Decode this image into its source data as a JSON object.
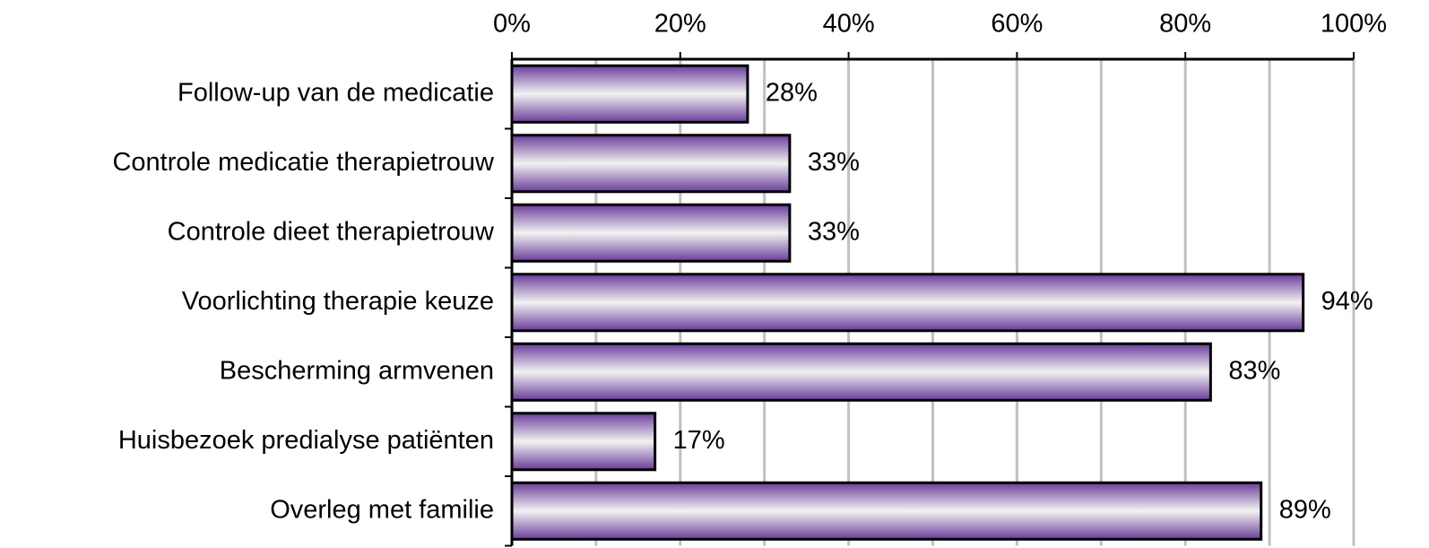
{
  "chart_data": {
    "type": "hbar",
    "categories": [
      "Follow-up van de medicatie",
      "Controle medicatie therapietrouw",
      "Controle dieet therapietrouw",
      "Voorlichting therapie keuze",
      "Bescherming armvenen",
      "Huisbezoek predialyse patiënten",
      "Overleg met familie"
    ],
    "values": [
      28,
      33,
      33,
      94,
      83,
      17,
      89
    ],
    "value_labels": [
      "28%",
      "33%",
      "33%",
      "94%",
      "83%",
      "17%",
      "89%"
    ],
    "color": "#6a3d9a",
    "xlim": [
      0,
      100
    ],
    "xticks": [
      {
        "value": 0,
        "label": "0%"
      },
      {
        "value": 20,
        "label": "20%"
      },
      {
        "value": 40,
        "label": "40%"
      },
      {
        "value": 60,
        "label": "60%"
      },
      {
        "value": 80,
        "label": "80%"
      },
      {
        "value": 100,
        "label": "100%"
      }
    ],
    "minor_xticks": [
      10,
      30,
      50,
      70,
      90
    ],
    "grid": true
  }
}
